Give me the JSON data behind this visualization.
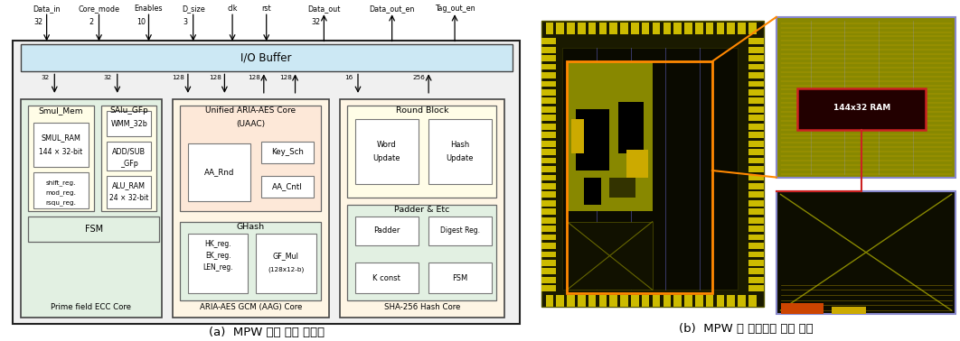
{
  "title_left": "(a)  MPW 칩의 내부 구성도",
  "title_right": "(b)  MPW 칩 레이아웃 설계 결과",
  "io_buffer_label": "I/O Buffer",
  "io_buffer_color": "#cce8f4",
  "ecc_core_label": "Prime field ECC Core",
  "aag_core_label": "ARIA-AES GCM (AAG) Core",
  "sha_core_label": "SHA-256 Hash Core",
  "ecc_bg": "#e2f0e2",
  "aag_bg": "#fef5e4",
  "sha_bg": "#fef5e4",
  "smul_mem_bg": "#fffde7",
  "salu_gfp_bg": "#fffde7",
  "uaac_bg": "#fde8d8",
  "ghash_bg": "#e2f0e2",
  "round_block_bg": "#fffde7",
  "padder_bg": "#e2f0e2",
  "white_box": "#ffffff",
  "fsm_bg": "#e2f0e2",
  "outer_bg": "#f0f0f0"
}
